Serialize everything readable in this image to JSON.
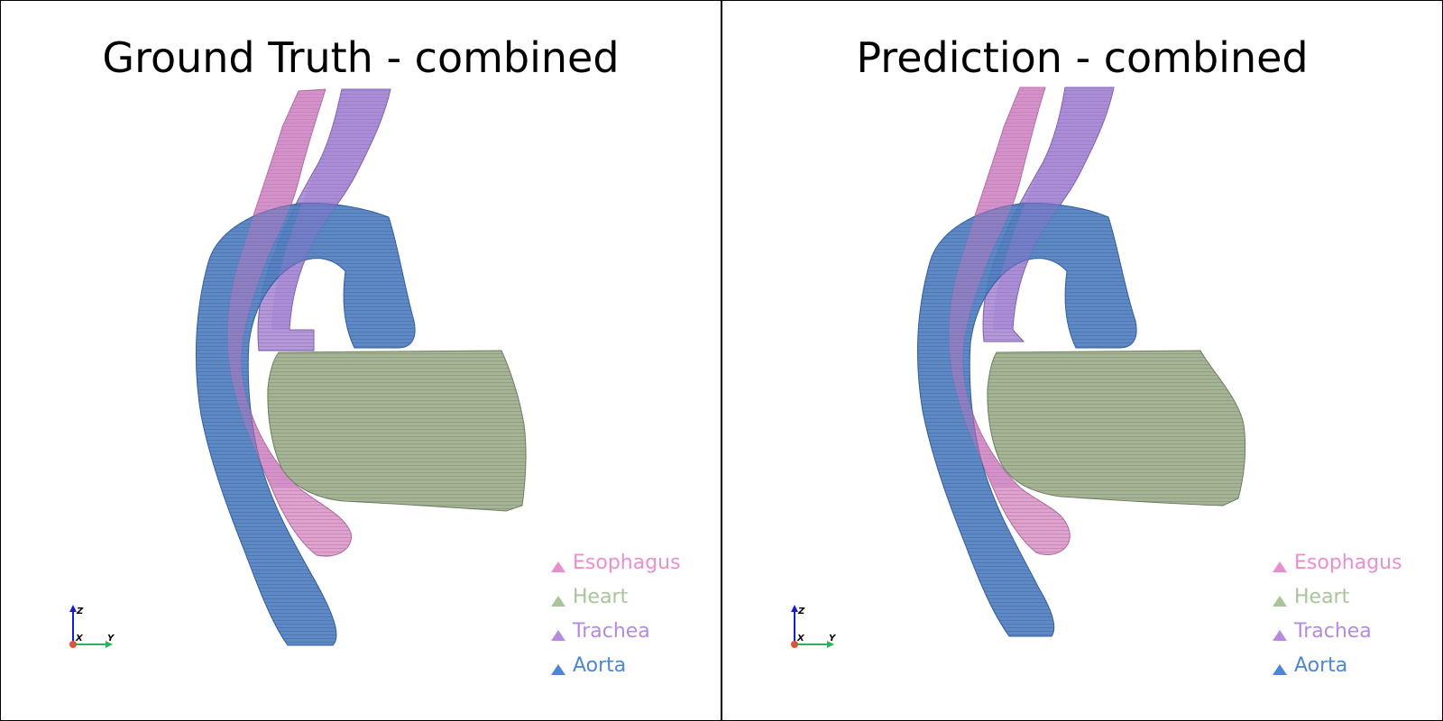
{
  "panels": [
    {
      "title": "Ground Truth - combined",
      "legend": [
        {
          "label": "Esophagus",
          "color": "#e98fcf"
        },
        {
          "label": "Heart",
          "color": "#a9c49a"
        },
        {
          "label": "Trachea",
          "color": "#b48be0"
        },
        {
          "label": "Aorta",
          "color": "#4f86d4"
        }
      ],
      "axes": {
        "z": "Z",
        "x": "X",
        "y": "Y"
      }
    },
    {
      "title": "Prediction - combined",
      "legend": [
        {
          "label": "Esophagus",
          "color": "#e98fcf"
        },
        {
          "label": "Heart",
          "color": "#a9c49a"
        },
        {
          "label": "Trachea",
          "color": "#b48be0"
        },
        {
          "label": "Aorta",
          "color": "#4f86d4"
        }
      ],
      "axes": {
        "z": "Z",
        "x": "X",
        "y": "Y"
      }
    }
  ],
  "colors": {
    "esophagus": "#d98cc4",
    "heart": "#9fb08e",
    "trachea": "#a886d6",
    "aorta": "#4f7fc2",
    "axis_z": "#1b1bd0",
    "axis_y": "#2fb05a",
    "axis_origin": "#d9553a"
  }
}
